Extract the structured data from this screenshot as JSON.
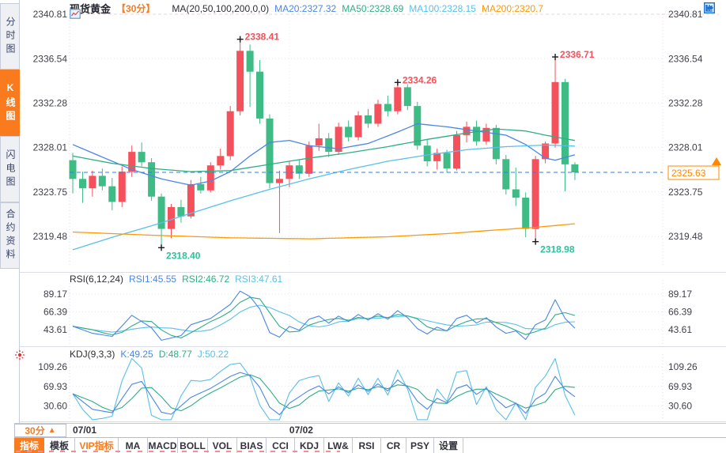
{
  "colors": {
    "up": "#f4515c",
    "down": "#3fbb85",
    "label_high": "#f4515c",
    "label_low": "#2fc29b",
    "ma20": "#4a86e8",
    "ma50": "#2fae85",
    "ma100": "#58c0ea",
    "ma200": "#ff9900",
    "accent_orange": "#f97b1d",
    "price_line": "#2e7df6",
    "price_label": "#ff8800",
    "grid": "#e6e6ef",
    "grid_pink": "#eed3d3",
    "axis_text": "#40404a",
    "icon_blue": "#1d74d2",
    "sun_red": "#e63030"
  },
  "sidebar": {
    "items": [
      {
        "key": "time-chart",
        "label": "分时图",
        "active": false
      },
      {
        "key": "kline-chart",
        "label": "K线图",
        "active": true
      },
      {
        "key": "lightning-chart",
        "label": "闪电图",
        "active": false
      },
      {
        "key": "contract-info",
        "label": "合约资料",
        "active": false
      }
    ]
  },
  "header": {
    "title": "现货黄金",
    "period": "【30分】",
    "formula": "MA(20,50,100,200,0,0)",
    "legend": [
      {
        "key": "ma20",
        "text": "MA20:2327.32"
      },
      {
        "key": "ma50",
        "text": "MA50:2328.69"
      },
      {
        "key": "ma100",
        "text": "MA100:2328.15"
      },
      {
        "key": "ma200",
        "text": "MA200:2320.7"
      }
    ],
    "tool_icons": [
      "pan",
      "scale-left",
      "scale-right",
      "export"
    ]
  },
  "current_price": {
    "value": "2325.63"
  },
  "chart_data": {
    "type": "candlestick",
    "symbol": "现货黄金",
    "interval": "30分",
    "price_axis": {
      "ticks": [
        2340.81,
        2336.54,
        2332.28,
        2328.01,
        2323.75,
        2319.48
      ]
    },
    "x_dates": [
      {
        "index": 0,
        "label": "07/01"
      },
      {
        "index": 22,
        "label": "07/02"
      }
    ],
    "annotations": [
      {
        "index": 9,
        "price": 2318.4,
        "text": "2318.40",
        "type": "low"
      },
      {
        "index": 17,
        "price": 2338.41,
        "text": "2338.41",
        "type": "high"
      },
      {
        "index": 33,
        "price": 2334.26,
        "text": "2334.26",
        "type": "high"
      },
      {
        "index": 47,
        "price": 2318.98,
        "text": "2318.98",
        "type": "low"
      },
      {
        "index": 49,
        "price": 2336.71,
        "text": "2336.71",
        "type": "high"
      }
    ],
    "current_price_value": 2325.63,
    "candles_ohlc": [
      [
        2326.8,
        2327.5,
        2323.6,
        2325.0
      ],
      [
        2325.0,
        2325.7,
        2322.7,
        2324.1
      ],
      [
        2324.1,
        2325.8,
        2323.3,
        2325.3
      ],
      [
        2325.3,
        2326.0,
        2323.9,
        2324.3
      ],
      [
        2324.3,
        2325.1,
        2322.0,
        2322.8
      ],
      [
        2322.8,
        2326.2,
        2322.3,
        2325.7
      ],
      [
        2325.7,
        2328.2,
        2325.2,
        2327.6
      ],
      [
        2327.6,
        2328.5,
        2326.2,
        2326.6
      ],
      [
        2326.6,
        2327.0,
        2322.9,
        2323.3
      ],
      [
        2323.3,
        2323.6,
        2318.4,
        2320.2
      ],
      [
        2320.2,
        2322.6,
        2319.3,
        2322.3
      ],
      [
        2322.3,
        2323.0,
        2320.8,
        2321.4
      ],
      [
        2321.4,
        2324.9,
        2321.2,
        2324.5
      ],
      [
        2324.5,
        2325.2,
        2323.6,
        2323.9
      ],
      [
        2323.9,
        2326.6,
        2323.7,
        2326.3
      ],
      [
        2326.3,
        2327.9,
        2325.9,
        2327.2
      ],
      [
        2327.2,
        2332.0,
        2326.8,
        2331.5
      ],
      [
        2331.5,
        2338.41,
        2331.1,
        2337.3
      ],
      [
        2337.3,
        2337.9,
        2331.9,
        2335.3
      ],
      [
        2335.3,
        2336.4,
        2330.3,
        2330.8
      ],
      [
        2330.8,
        2331.2,
        2324.1,
        2324.6
      ],
      [
        2324.6,
        2325.8,
        2319.8,
        2325.0
      ],
      [
        2325.0,
        2326.7,
        2324.2,
        2326.3
      ],
      [
        2326.3,
        2326.9,
        2325.0,
        2325.5
      ],
      [
        2325.5,
        2328.6,
        2325.2,
        2328.2
      ],
      [
        2328.2,
        2330.3,
        2327.7,
        2328.9
      ],
      [
        2328.9,
        2329.4,
        2327.1,
        2327.6
      ],
      [
        2327.6,
        2330.4,
        2327.3,
        2330.0
      ],
      [
        2330.0,
        2330.6,
        2328.6,
        2329.0
      ],
      [
        2329.0,
        2331.5,
        2328.7,
        2331.1
      ],
      [
        2331.1,
        2331.7,
        2329.9,
        2330.3
      ],
      [
        2330.3,
        2332.6,
        2330.0,
        2332.2
      ],
      [
        2332.2,
        2333.0,
        2331.0,
        2331.5
      ],
      [
        2331.5,
        2334.26,
        2331.2,
        2333.8
      ],
      [
        2333.8,
        2334.1,
        2331.6,
        2332.0
      ],
      [
        2332.0,
        2332.4,
        2327.8,
        2328.2
      ],
      [
        2328.2,
        2328.8,
        2326.2,
        2326.7
      ],
      [
        2326.7,
        2327.9,
        2325.9,
        2327.5
      ],
      [
        2327.5,
        2327.8,
        2325.6,
        2326.0
      ],
      [
        2326.0,
        2329.6,
        2325.8,
        2329.2
      ],
      [
        2329.2,
        2330.5,
        2328.5,
        2330.0
      ],
      [
        2330.0,
        2330.6,
        2328.2,
        2328.6
      ],
      [
        2328.6,
        2330.3,
        2328.3,
        2329.9
      ],
      [
        2329.9,
        2330.2,
        2326.4,
        2326.9
      ],
      [
        2326.9,
        2327.3,
        2323.5,
        2324.0
      ],
      [
        2324.0,
        2326.1,
        2322.4,
        2323.2
      ],
      [
        2323.2,
        2323.7,
        2319.4,
        2320.2
      ],
      [
        2320.2,
        2327.2,
        2318.98,
        2326.9
      ],
      [
        2326.9,
        2328.6,
        2326.5,
        2328.4
      ],
      [
        2328.4,
        2336.71,
        2328.0,
        2334.3
      ],
      [
        2334.3,
        2334.6,
        2323.8,
        2326.4
      ],
      [
        2326.4,
        2326.6,
        2324.9,
        2325.63
      ]
    ],
    "ma_lines": {
      "ma20": {
        "color_key": "ma20",
        "anchors": [
          [
            0,
            2328.3
          ],
          [
            3,
            2327.1
          ],
          [
            6,
            2325.9
          ],
          [
            9,
            2325.0
          ],
          [
            12,
            2324.4
          ],
          [
            14,
            2324.8
          ],
          [
            16,
            2325.7
          ],
          [
            18,
            2327.2
          ],
          [
            20,
            2328.5
          ],
          [
            22,
            2328.7
          ],
          [
            24,
            2328.2
          ],
          [
            27,
            2327.9
          ],
          [
            30,
            2328.4
          ],
          [
            33,
            2329.5
          ],
          [
            35,
            2330.3
          ],
          [
            38,
            2330.0
          ],
          [
            41,
            2329.6
          ],
          [
            44,
            2329.2
          ],
          [
            46,
            2328.3
          ],
          [
            48,
            2327.0
          ],
          [
            49,
            2326.8
          ],
          [
            51,
            2327.32
          ]
        ]
      },
      "ma50": {
        "color_key": "ma50",
        "anchors": [
          [
            0,
            2327.2
          ],
          [
            4,
            2326.5
          ],
          [
            8,
            2326.0
          ],
          [
            12,
            2325.7
          ],
          [
            16,
            2325.8
          ],
          [
            20,
            2326.4
          ],
          [
            24,
            2327.0
          ],
          [
            28,
            2327.5
          ],
          [
            32,
            2328.1
          ],
          [
            36,
            2328.8
          ],
          [
            40,
            2329.4
          ],
          [
            43,
            2329.8
          ],
          [
            46,
            2329.6
          ],
          [
            48,
            2329.2
          ],
          [
            51,
            2328.69
          ]
        ]
      },
      "ma100": {
        "color_key": "ma100",
        "anchors": [
          [
            0,
            2318.2
          ],
          [
            4,
            2319.4
          ],
          [
            8,
            2320.5
          ],
          [
            12,
            2321.7
          ],
          [
            16,
            2322.9
          ],
          [
            20,
            2324.0
          ],
          [
            24,
            2325.0
          ],
          [
            28,
            2325.9
          ],
          [
            32,
            2326.7
          ],
          [
            36,
            2327.3
          ],
          [
            40,
            2327.8
          ],
          [
            44,
            2328.1
          ],
          [
            48,
            2328.25
          ],
          [
            51,
            2328.15
          ]
        ]
      },
      "ma200": {
        "color_key": "ma200",
        "anchors": [
          [
            0,
            2319.9
          ],
          [
            8,
            2319.6
          ],
          [
            16,
            2319.35
          ],
          [
            24,
            2319.25
          ],
          [
            32,
            2319.45
          ],
          [
            38,
            2319.75
          ],
          [
            43,
            2320.1
          ],
          [
            47,
            2320.35
          ],
          [
            51,
            2320.7
          ]
        ]
      }
    },
    "rsi": {
      "formula": "RSI(6,12,24)",
      "labels": [
        {
          "key": "rsi1",
          "text": "RSI1:45.55"
        },
        {
          "key": "rsi2",
          "text": "RSI2:46.72"
        },
        {
          "key": "rsi3",
          "text": "RSI3:47.61"
        }
      ],
      "ticks": [
        89.17,
        66.39,
        43.61
      ],
      "rsi1_anchors": [
        [
          0,
          48
        ],
        [
          2,
          39
        ],
        [
          4,
          35
        ],
        [
          6,
          62
        ],
        [
          8,
          46
        ],
        [
          9,
          30
        ],
        [
          11,
          36
        ],
        [
          12,
          50
        ],
        [
          14,
          58
        ],
        [
          16,
          76
        ],
        [
          17,
          93
        ],
        [
          18,
          86
        ],
        [
          19,
          70
        ],
        [
          20,
          40
        ],
        [
          21,
          34
        ],
        [
          22,
          48
        ],
        [
          23,
          43
        ],
        [
          24,
          57
        ],
        [
          25,
          61
        ],
        [
          26,
          52
        ],
        [
          27,
          61
        ],
        [
          28,
          54
        ],
        [
          29,
          63
        ],
        [
          30,
          56
        ],
        [
          31,
          64
        ],
        [
          32,
          57
        ],
        [
          33,
          68
        ],
        [
          34,
          59
        ],
        [
          35,
          45
        ],
        [
          36,
          38
        ],
        [
          37,
          47
        ],
        [
          38,
          42
        ],
        [
          39,
          58
        ],
        [
          40,
          62
        ],
        [
          41,
          52
        ],
        [
          42,
          59
        ],
        [
          43,
          47
        ],
        [
          44,
          39
        ],
        [
          45,
          42
        ],
        [
          46,
          31
        ],
        [
          47,
          50
        ],
        [
          48,
          56
        ],
        [
          49,
          82
        ],
        [
          50,
          58
        ],
        [
          51,
          45.55
        ]
      ]
    },
    "kdj": {
      "formula": "KDJ(9,3,3)",
      "labels": [
        {
          "key": "k",
          "text": "K:49.25"
        },
        {
          "key": "d",
          "text": "D:48.77"
        },
        {
          "key": "j",
          "text": "J:50.22"
        }
      ],
      "ticks": [
        109.26,
        69.93,
        30.6
      ],
      "k_anchors": [
        [
          0,
          55
        ],
        [
          2,
          24
        ],
        [
          4,
          17
        ],
        [
          6,
          74
        ],
        [
          7,
          80
        ],
        [
          9,
          18
        ],
        [
          10,
          14
        ],
        [
          12,
          48
        ],
        [
          14,
          66
        ],
        [
          16,
          90
        ],
        [
          17,
          98
        ],
        [
          18,
          92
        ],
        [
          19,
          68
        ],
        [
          20,
          28
        ],
        [
          21,
          13
        ],
        [
          22,
          36
        ],
        [
          24,
          62
        ],
        [
          25,
          71
        ],
        [
          26,
          55
        ],
        [
          27,
          69
        ],
        [
          28,
          57
        ],
        [
          29,
          73
        ],
        [
          30,
          60
        ],
        [
          31,
          75
        ],
        [
          32,
          61
        ],
        [
          33,
          83
        ],
        [
          34,
          69
        ],
        [
          35,
          40
        ],
        [
          36,
          24
        ],
        [
          37,
          46
        ],
        [
          38,
          37
        ],
        [
          39,
          66
        ],
        [
          40,
          73
        ],
        [
          41,
          54
        ],
        [
          42,
          66
        ],
        [
          43,
          44
        ],
        [
          44,
          27
        ],
        [
          45,
          36
        ],
        [
          46,
          16
        ],
        [
          47,
          44
        ],
        [
          48,
          56
        ],
        [
          49,
          90
        ],
        [
          50,
          64
        ],
        [
          51,
          49.25
        ]
      ]
    }
  },
  "time_axis": {
    "period_label": "30分",
    "period_arrow": "▲"
  },
  "bottom_toolbar": {
    "items": [
      {
        "key": "indicator",
        "label": "指标",
        "state": "active"
      },
      {
        "key": "template",
        "label": "模板",
        "state": ""
      },
      {
        "key": "vip-indicator",
        "label": "VIP指标",
        "state": "vip"
      },
      {
        "key": "ma",
        "label": "MA",
        "state": ""
      },
      {
        "key": "macd",
        "label": "MACD",
        "state": ""
      },
      {
        "key": "boll",
        "label": "BOLL",
        "state": ""
      },
      {
        "key": "vol",
        "label": "VOL",
        "state": ""
      },
      {
        "key": "bias",
        "label": "BIAS",
        "state": ""
      },
      {
        "key": "cci",
        "label": "CCI",
        "state": ""
      },
      {
        "key": "kdj",
        "label": "KDJ",
        "state": ""
      },
      {
        "key": "lw",
        "label": "LW&",
        "state": ""
      },
      {
        "key": "rsi",
        "label": "RSI",
        "state": ""
      },
      {
        "key": "cr",
        "label": "CR",
        "state": ""
      },
      {
        "key": "psy",
        "label": "PSY",
        "state": ""
      },
      {
        "key": "settings",
        "label": "设置",
        "state": ""
      }
    ]
  }
}
